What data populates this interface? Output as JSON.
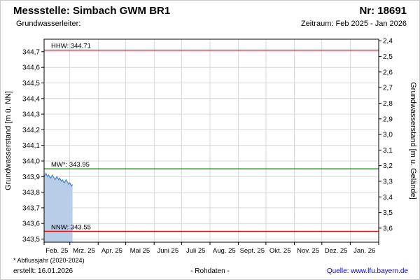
{
  "header": {
    "title": "Messstelle: Simbach GWM BR1",
    "number": "Nr: 18691",
    "aquifer_label": "Grundwasserleiter:",
    "period_label": "Zeitraum: Feb 2025 - Jan 2026"
  },
  "footer": {
    "note": "* Abflussjahr (2020-2024)",
    "created": "erstellt: 16.01.2026",
    "center_label": "- Rohdaten -",
    "source_prefix": "Quelle:",
    "source_link": "www.lfu.bayern.de"
  },
  "chart_data": {
    "type": "area",
    "title": "",
    "ylabel_left": "Grundwasserstand [m ü. NN]",
    "ylabel_right": "Grundwasserstand [m u. Gelände]",
    "ylim_left": [
      343.48,
      344.78
    ],
    "ylim_right": [
      2.39,
      3.69
    ],
    "grid": true,
    "left_ticks": {
      "values": [
        344.7,
        344.6,
        344.5,
        344.4,
        344.3,
        344.2,
        344.1,
        344.0,
        343.9,
        343.8,
        343.7,
        343.6,
        343.5
      ],
      "labels": [
        "344,7",
        "344,6",
        "344,5",
        "344,4",
        "344,3",
        "344,2",
        "344,1",
        "344,0",
        "343,9",
        "343,8",
        "343,7",
        "343,6",
        "343,5"
      ]
    },
    "right_ticks": {
      "values": [
        2.4,
        2.5,
        2.6,
        2.7,
        2.8,
        2.9,
        3.0,
        3.1,
        3.2,
        3.3,
        3.4,
        3.5,
        3.6
      ],
      "labels": [
        "2,4",
        "2,5",
        "2,6",
        "2,7",
        "2,8",
        "2,9",
        "3,0",
        "3,1",
        "3,2",
        "3,3",
        "3,4",
        "3,5",
        "3,6"
      ]
    },
    "months": {
      "labels": [
        "Feb. 25",
        "Mrz. 25",
        "Apr. 25",
        "Mai 25",
        "Juni 25",
        "Juli 25",
        "Aug. 25",
        "Sept. 25",
        "Okt. 25",
        "Nov. 25",
        "Dez. 25",
        "Jan. 26"
      ],
      "starts": [
        0,
        28,
        59,
        89,
        120,
        150,
        181,
        212,
        242,
        273,
        303,
        334
      ],
      "total_days": 365
    },
    "reference_lines": [
      {
        "name": "hhw",
        "label": "HHW: 344.71",
        "value": 344.71,
        "color": "#ff0000"
      },
      {
        "name": "mw",
        "label": "MW*: 343.95",
        "value": 343.95,
        "color": "#009900"
      },
      {
        "name": "nnw",
        "label": "NNW: 343.55",
        "value": 343.55,
        "color": "#ff0000"
      }
    ],
    "series": [
      {
        "name": "Grundwasserstand Rohdaten",
        "start_day": 0,
        "step_days": 1,
        "values": [
          343.9,
          343.91,
          343.92,
          343.91,
          343.9,
          343.91,
          343.9,
          343.89,
          343.9,
          343.91,
          343.9,
          343.89,
          343.88,
          343.89,
          343.9,
          343.89,
          343.88,
          343.89,
          343.88,
          343.87,
          343.88,
          343.87,
          343.86,
          343.87,
          343.88,
          343.87,
          343.86,
          343.85,
          343.86,
          343.85,
          343.84,
          343.85
        ],
        "line_color": "#4f81bd",
        "fill_color": "#b7cde8"
      }
    ],
    "colors": {
      "grid": "#d9d9d9",
      "axis": "#000000",
      "background": "#ffffff"
    }
  }
}
